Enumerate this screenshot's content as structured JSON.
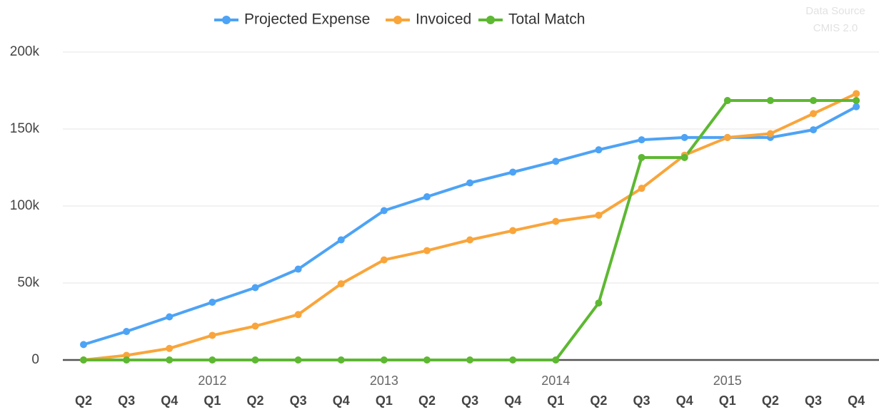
{
  "chart_data": {
    "type": "line",
    "categories": [
      "Q2",
      "Q3",
      "Q4",
      "Q1",
      "Q2",
      "Q3",
      "Q4",
      "Q1",
      "Q2",
      "Q3",
      "Q4",
      "Q1",
      "Q2",
      "Q3",
      "Q4",
      "Q1",
      "Q2",
      "Q3",
      "Q4"
    ],
    "years": [
      "2012",
      "2013",
      "2014",
      "2015"
    ],
    "series": [
      {
        "name": "Projected Expense",
        "color": "#4da3f5",
        "values": [
          10000,
          18500,
          28000,
          37500,
          47000,
          59000,
          78000,
          97000,
          106000,
          115000,
          122000,
          129000,
          136500,
          143000,
          144500,
          144500,
          144500,
          149500,
          164500
        ]
      },
      {
        "name": "Invoiced",
        "color": "#f9a53b",
        "values": [
          0,
          3000,
          7500,
          16000,
          22000,
          29500,
          49500,
          65000,
          71000,
          78000,
          84000,
          90000,
          94000,
          111500,
          133000,
          144500,
          147000,
          160000,
          173000
        ]
      },
      {
        "name": "Total Match",
        "color": "#5db832",
        "values": [
          0,
          0,
          0,
          0,
          0,
          0,
          0,
          0,
          0,
          0,
          0,
          0,
          37000,
          131500,
          131500,
          168500,
          168500,
          168500,
          168500
        ]
      }
    ],
    "ylim": [
      0,
      200000
    ],
    "yticks": [
      0,
      {
        "value": 50000,
        "label": "50k"
      },
      {
        "value": 100000,
        "label": "100k"
      },
      {
        "value": 150000,
        "label": "150k"
      },
      {
        "value": 200000,
        "label": "200k"
      }
    ],
    "grid": true,
    "legend": "top",
    "source": [
      "Data Source",
      "CMIS 2.0"
    ]
  }
}
